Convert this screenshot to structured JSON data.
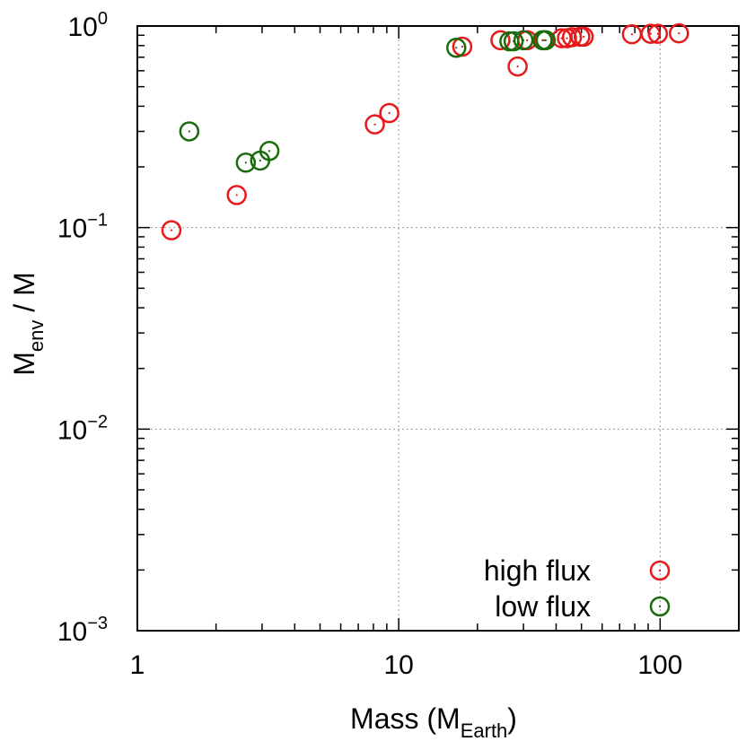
{
  "chart_data": {
    "type": "scatter",
    "scale": {
      "x": "log",
      "y": "log"
    },
    "xlim": [
      1,
      200
    ],
    "ylim": [
      0.001,
      1
    ],
    "grid": true,
    "xlabel": {
      "main": "Mass (M",
      "sub": "Earth",
      "tail": ")"
    },
    "ylabel": {
      "main": "M",
      "sub": "env",
      "tail": " / M"
    },
    "x_ticks": [
      {
        "value": 1,
        "label": "1"
      },
      {
        "value": 10,
        "label": "10"
      },
      {
        "value": 100,
        "label": "100"
      }
    ],
    "y_ticks": [
      {
        "value": 0.001,
        "base": "10",
        "exp": "−3"
      },
      {
        "value": 0.01,
        "base": "10",
        "exp": "−2"
      },
      {
        "value": 0.1,
        "base": "10",
        "exp": "−1"
      },
      {
        "value": 1,
        "base": "10",
        "exp": "0"
      }
    ],
    "legend_position": "bottom-right",
    "series": [
      {
        "name": "high flux",
        "color": "#e8191b",
        "points": [
          [
            1.35,
            0.097
          ],
          [
            2.4,
            0.145
          ],
          [
            8.1,
            0.325
          ],
          [
            9.2,
            0.37
          ],
          [
            17.5,
            0.79
          ],
          [
            24.5,
            0.85
          ],
          [
            28.5,
            0.63
          ],
          [
            31,
            0.85
          ],
          [
            36,
            0.85
          ],
          [
            42,
            0.87
          ],
          [
            44,
            0.87
          ],
          [
            46,
            0.88
          ],
          [
            49.5,
            0.885
          ],
          [
            51,
            0.885
          ],
          [
            78,
            0.91
          ],
          [
            92,
            0.915
          ],
          [
            98,
            0.915
          ],
          [
            118,
            0.92
          ]
        ]
      },
      {
        "name": "low flux",
        "color": "#1b6b0d",
        "points": [
          [
            1.58,
            0.3
          ],
          [
            2.6,
            0.21
          ],
          [
            2.95,
            0.215
          ],
          [
            3.2,
            0.24
          ],
          [
            16.6,
            0.78
          ],
          [
            26.5,
            0.84
          ],
          [
            27.5,
            0.84
          ],
          [
            30,
            0.85
          ],
          [
            35.5,
            0.85
          ],
          [
            36.5,
            0.85
          ]
        ]
      }
    ]
  }
}
